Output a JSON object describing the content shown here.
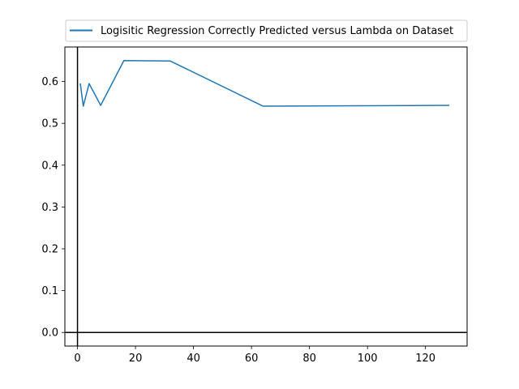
{
  "chart_data": {
    "type": "line",
    "title": "",
    "xlabel": "",
    "ylabel": "",
    "xlim": [
      -4.35,
      134.35
    ],
    "ylim": [
      -0.0325,
      0.6825
    ],
    "x_ticks": [
      0,
      20,
      40,
      60,
      80,
      100,
      120
    ],
    "y_ticks": [
      0.0,
      0.1,
      0.2,
      0.3,
      0.4,
      0.5,
      0.6
    ],
    "x_tick_labels": [
      "0",
      "20",
      "40",
      "60",
      "80",
      "100",
      "120"
    ],
    "y_tick_labels": [
      "0.0",
      "0.1",
      "0.2",
      "0.3",
      "0.4",
      "0.5",
      "0.6"
    ],
    "grid": false,
    "reference_lines": {
      "x": 0,
      "y": 0
    },
    "legend": {
      "placement": "top",
      "outside_plot": true
    },
    "series": [
      {
        "name": "Logisitic Regression Correctly Predicted versus Lambda on Dataset",
        "color": "#1f77b4",
        "x": [
          1,
          2,
          4,
          8,
          16,
          32,
          64,
          128
        ],
        "y": [
          0.594,
          0.541,
          0.595,
          0.543,
          0.65,
          0.649,
          0.541,
          0.543
        ]
      }
    ]
  }
}
